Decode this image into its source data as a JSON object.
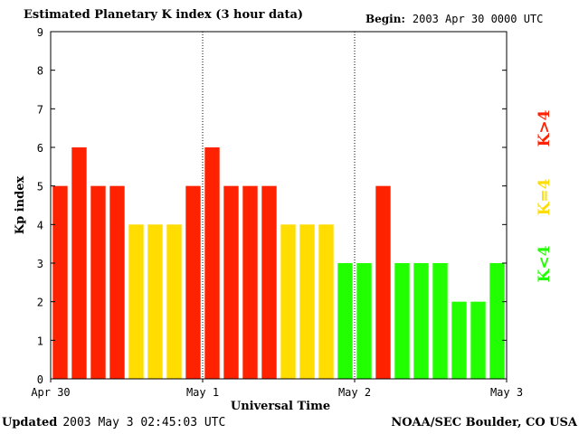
{
  "header": {
    "title": "Estimated Planetary K index (3 hour data)",
    "begin_label": "Begin:",
    "begin_value": "2003 Apr 30 0000 UTC"
  },
  "footer": {
    "updated_label": "Updated",
    "updated_value": "2003 May  3 02:45:03 UTC",
    "source": "NOAA/SEC Boulder, CO USA"
  },
  "legend": {
    "high": "K>4",
    "mid": "K=4",
    "low": "K<4"
  },
  "colors": {
    "high": "#ff2200",
    "mid": "#ffdd00",
    "low": "#22ff00",
    "axis": "#000000"
  },
  "chart_data": {
    "type": "bar",
    "title": "Estimated Planetary K index (3 hour data)",
    "xlabel": "Universal Time",
    "ylabel": "Kp index",
    "ylim": [
      0,
      9
    ],
    "yticks": [
      0,
      1,
      2,
      3,
      4,
      5,
      6,
      7,
      8,
      9
    ],
    "x_tick_labels": [
      "Apr 30",
      "May 1",
      "May 2",
      "May 3"
    ],
    "day_separators_after_bar": [
      8,
      16
    ],
    "values": [
      5,
      6,
      5,
      5,
      4,
      4,
      4,
      5,
      6,
      5,
      5,
      5,
      4,
      4,
      4,
      3,
      3,
      5,
      3,
      3,
      3,
      2,
      2,
      3
    ]
  }
}
